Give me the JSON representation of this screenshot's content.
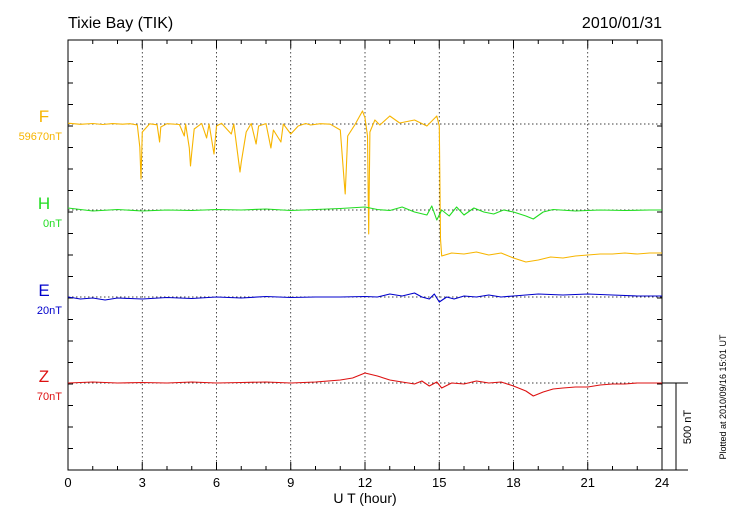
{
  "chart_data": {
    "type": "line",
    "title": "Tixie Bay (TIK)",
    "date": "2010/01/31",
    "xlabel": "U T (hour)",
    "xlim": [
      0,
      24
    ],
    "xticks": [
      "0",
      "3",
      "6",
      "9",
      "12",
      "15",
      "18",
      "21",
      "24"
    ],
    "grid": true,
    "scale_bar_label": "500 nT",
    "plotted_note": "Plotted at 2010/09/16 15:01 UT",
    "series": [
      {
        "name": "F",
        "baseline_label": "59670nT",
        "color": "#f7b500",
        "points": [
          [
            0,
            0.8
          ],
          [
            0.5,
            -0.3
          ],
          [
            1,
            0.5
          ],
          [
            1.4,
            -0.5
          ],
          [
            1.8,
            0.4
          ],
          [
            2.2,
            -0.2
          ],
          [
            2.5,
            0.3
          ],
          [
            2.8,
            -1
          ],
          [
            2.9,
            -23
          ],
          [
            2.95,
            -55
          ],
          [
            3.0,
            -8
          ],
          [
            3.3,
            0.2
          ],
          [
            3.6,
            -0.8
          ],
          [
            3.7,
            -18
          ],
          [
            3.75,
            -3
          ],
          [
            4.0,
            0.3
          ],
          [
            4.5,
            -0.5
          ],
          [
            4.7,
            -12
          ],
          [
            4.75,
            0
          ],
          [
            4.9,
            -24
          ],
          [
            4.95,
            -42
          ],
          [
            5.0,
            -28
          ],
          [
            5.1,
            -5
          ],
          [
            5.4,
            0.6
          ],
          [
            5.6,
            -14
          ],
          [
            5.7,
            0
          ],
          [
            5.9,
            -30
          ],
          [
            6.0,
            -2
          ],
          [
            6.2,
            0.7
          ],
          [
            6.6,
            -10
          ],
          [
            6.7,
            0
          ],
          [
            6.95,
            -48
          ],
          [
            7.0,
            -38
          ],
          [
            7.2,
            -8
          ],
          [
            7.4,
            0.5
          ],
          [
            7.6,
            -20
          ],
          [
            7.7,
            -2
          ],
          [
            8.0,
            0.4
          ],
          [
            8.2,
            -24
          ],
          [
            8.3,
            -6
          ],
          [
            8.6,
            -18
          ],
          [
            8.7,
            0
          ],
          [
            9.0,
            -10
          ],
          [
            9.3,
            -2
          ],
          [
            9.6,
            0.5
          ],
          [
            9.8,
            -1
          ],
          [
            10.2,
            0.3
          ],
          [
            10.6,
            -0.2
          ],
          [
            11.0,
            -6
          ],
          [
            11.15,
            -55
          ],
          [
            11.2,
            -70
          ],
          [
            11.3,
            -12
          ],
          [
            11.6,
            -0.4
          ],
          [
            11.9,
            13
          ],
          [
            12.0,
            6
          ],
          [
            12.1,
            -12
          ],
          [
            12.15,
            -110
          ],
          [
            12.2,
            -8
          ],
          [
            12.4,
            4
          ],
          [
            12.6,
            -1
          ],
          [
            13.0,
            8
          ],
          [
            13.4,
            1
          ],
          [
            14.0,
            4
          ],
          [
            14.5,
            -2
          ],
          [
            14.9,
            8
          ],
          [
            15.0,
            -2
          ],
          [
            15.05,
            -115
          ],
          [
            15.1,
            -132
          ],
          [
            15.5,
            -129
          ],
          [
            16,
            -130
          ],
          [
            16.5,
            -128
          ],
          [
            17,
            -131
          ],
          [
            17.5,
            -129
          ],
          [
            18,
            -134
          ],
          [
            18.5,
            -138
          ],
          [
            19,
            -136
          ],
          [
            19.5,
            -133
          ],
          [
            20,
            -134
          ],
          [
            20.5,
            -132
          ],
          [
            21,
            -131
          ],
          [
            21.5,
            -130
          ],
          [
            22,
            -130
          ],
          [
            22.5,
            -129
          ],
          [
            23,
            -130
          ],
          [
            23.5,
            -129
          ],
          [
            24,
            -129
          ]
        ]
      },
      {
        "name": "H",
        "baseline_label": "0nT",
        "color": "#22dd22",
        "points": [
          [
            0,
            2
          ],
          [
            1,
            -1
          ],
          [
            2,
            0.5
          ],
          [
            3,
            -1
          ],
          [
            4,
            0
          ],
          [
            5,
            -0.5
          ],
          [
            6,
            0.5
          ],
          [
            7,
            0
          ],
          [
            8,
            1
          ],
          [
            9,
            -0.5
          ],
          [
            10,
            0.5
          ],
          [
            11,
            1.5
          ],
          [
            12,
            3
          ],
          [
            12.5,
            0.5
          ],
          [
            13,
            -0.5
          ],
          [
            13.5,
            3
          ],
          [
            14,
            -2
          ],
          [
            14.5,
            -5
          ],
          [
            14.7,
            4
          ],
          [
            14.9,
            -10
          ],
          [
            15.1,
            0
          ],
          [
            15.4,
            -6
          ],
          [
            15.7,
            3
          ],
          [
            16.0,
            -5
          ],
          [
            16.4,
            2
          ],
          [
            16.8,
            -2
          ],
          [
            17.2,
            -4
          ],
          [
            17.6,
            0
          ],
          [
            18.0,
            -2
          ],
          [
            18.5,
            -6
          ],
          [
            18.8,
            -9
          ],
          [
            19.2,
            -2
          ],
          [
            19.6,
            0.5
          ],
          [
            20.5,
            -1
          ],
          [
            21.5,
            0
          ],
          [
            22.5,
            -0.5
          ],
          [
            23.5,
            0
          ],
          [
            24,
            0
          ]
        ]
      },
      {
        "name": "E",
        "baseline_label": "20nT",
        "color": "#0000cc",
        "points": [
          [
            0,
            0
          ],
          [
            0.5,
            -2
          ],
          [
            1,
            -1
          ],
          [
            1.5,
            -3
          ],
          [
            2,
            -1
          ],
          [
            3,
            -2
          ],
          [
            4,
            -0.5
          ],
          [
            5,
            -1.5
          ],
          [
            6,
            0
          ],
          [
            7,
            -1
          ],
          [
            8,
            0.5
          ],
          [
            9,
            -0.5
          ],
          [
            10,
            0
          ],
          [
            11,
            0
          ],
          [
            12,
            0.5
          ],
          [
            12.5,
            0
          ],
          [
            13,
            3
          ],
          [
            13.5,
            1
          ],
          [
            14,
            4
          ],
          [
            14.3,
            0
          ],
          [
            14.6,
            -2
          ],
          [
            14.8,
            3
          ],
          [
            15.0,
            -5
          ],
          [
            15.3,
            0
          ],
          [
            15.6,
            -2
          ],
          [
            16.0,
            1
          ],
          [
            16.5,
            0
          ],
          [
            17,
            2
          ],
          [
            17.5,
            0
          ],
          [
            18,
            1
          ],
          [
            19,
            3
          ],
          [
            20,
            2
          ],
          [
            21,
            3
          ],
          [
            22,
            2
          ],
          [
            23,
            1
          ],
          [
            24,
            1
          ]
        ]
      },
      {
        "name": "Z",
        "baseline_label": "70nT",
        "color": "#dd1111",
        "points": [
          [
            0,
            0
          ],
          [
            1,
            1
          ],
          [
            2,
            0
          ],
          [
            3,
            0.5
          ],
          [
            4,
            0
          ],
          [
            5,
            1
          ],
          [
            6,
            0
          ],
          [
            7,
            0.5
          ],
          [
            8,
            1
          ],
          [
            9,
            0
          ],
          [
            10,
            1
          ],
          [
            11,
            3
          ],
          [
            11.5,
            5
          ],
          [
            12,
            10
          ],
          [
            12.5,
            7
          ],
          [
            13,
            3
          ],
          [
            13.5,
            1
          ],
          [
            14,
            -1
          ],
          [
            14.3,
            2
          ],
          [
            14.6,
            -3
          ],
          [
            14.9,
            1
          ],
          [
            15.1,
            -5
          ],
          [
            15.5,
            0
          ],
          [
            16,
            -1
          ],
          [
            16.5,
            2
          ],
          [
            17,
            0
          ],
          [
            17.5,
            1
          ],
          [
            18,
            -3
          ],
          [
            18.5,
            -8
          ],
          [
            18.8,
            -13
          ],
          [
            19.2,
            -9
          ],
          [
            19.6,
            -6
          ],
          [
            20,
            -5
          ],
          [
            20.5,
            -4
          ],
          [
            21,
            -4
          ],
          [
            21.5,
            -2
          ],
          [
            22,
            -1
          ],
          [
            22.5,
            -1
          ],
          [
            23,
            0
          ],
          [
            24,
            0
          ]
        ]
      }
    ]
  }
}
